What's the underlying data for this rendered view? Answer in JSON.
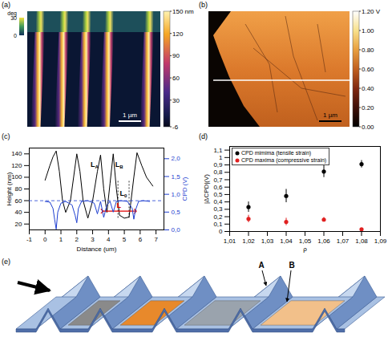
{
  "figure": {
    "a": {
      "label": "(a)",
      "colorbar": {
        "range": [
          -6,
          150
        ],
        "ticks": [
          {
            "value": 150,
            "label": "150 nm"
          },
          120,
          90,
          60,
          30,
          -6
        ]
      },
      "inset_colorbar": {
        "title": "deg",
        "range": [
          0,
          30
        ],
        "ticks": [
          30,
          0
        ]
      },
      "scale_bar": "1 µm"
    },
    "b": {
      "label": "(b)",
      "colorbar": {
        "range": [
          0,
          1.2
        ],
        "ticks": [
          {
            "value": 1.2,
            "label": "1.20 V"
          },
          {
            "value": 1,
            "label": "1.00"
          },
          {
            "value": 0.8,
            "label": "0.80"
          },
          {
            "value": 0.6,
            "label": "0.60"
          },
          {
            "value": 0.4,
            "label": "0.40"
          },
          {
            "value": 0.2,
            "label": "0.20"
          },
          {
            "value": 0,
            "label": "0.00"
          }
        ]
      },
      "scale_bar": "1 µm"
    },
    "e": {
      "label": "(e)",
      "labels": [
        "A",
        "B"
      ]
    }
  },
  "chart_data": [
    {
      "panel": "(c)",
      "type": "line",
      "xlabel": "Distance (um)",
      "ylabel": "Height (nm)",
      "y2label": "CPD (V)",
      "xlim": [
        -1,
        7.5
      ],
      "xticks": [
        -1,
        0,
        1,
        2,
        3,
        4,
        5,
        6,
        7
      ],
      "ylim": [
        10,
        150
      ],
      "yticks": [
        20,
        40,
        60,
        80,
        100,
        120,
        140
      ],
      "y2lim": [
        0,
        2.3
      ],
      "y2ticks": [
        {
          "value": 0,
          "label": "0,0"
        },
        {
          "value": 0.5,
          "label": "0,5"
        },
        {
          "value": 1,
          "label": "1,0"
        },
        {
          "value": 1.5,
          "label": "1,5"
        },
        {
          "value": 2,
          "label": "2,0"
        }
      ],
      "series": [
        {
          "color": "#000000",
          "x": [
            0,
            0.3,
            0.5,
            0.7,
            0.9,
            1.1,
            1.3,
            1.6,
            1.8,
            2.0,
            2.2,
            2.4,
            2.7,
            3.0,
            3.3,
            3.5,
            3.7,
            3.9,
            4.1,
            4.3,
            4.5,
            4.7,
            5.0,
            5.3,
            5.6,
            5.8,
            6.1,
            6.4,
            6.8
          ],
          "values": [
            95,
            120,
            135,
            145,
            110,
            60,
            40,
            60,
            100,
            140,
            110,
            60,
            30,
            60,
            110,
            138,
            80,
            40,
            90,
            140,
            80,
            35,
            30,
            32,
            100,
            142,
            120,
            100,
            85
          ]
        },
        {
          "color": "#1f3fd0",
          "axis": "y2",
          "x": [
            0,
            0.3,
            0.5,
            0.6,
            0.7,
            0.8,
            1.0,
            1.3,
            1.7,
            1.9,
            2.0,
            2.1,
            2.3,
            2.7,
            3.1,
            3.3,
            3.5,
            3.7,
            3.9,
            4.1,
            4.3,
            4.5,
            4.8,
            5.2,
            5.5,
            5.6,
            5.7,
            5.9,
            6.2,
            6.6
          ],
          "values": [
            0.8,
            0.78,
            0.6,
            0.3,
            0.02,
            0.5,
            0.75,
            0.8,
            0.7,
            0.4,
            0.2,
            0.6,
            0.8,
            0.82,
            0.75,
            0.45,
            0.8,
            0.35,
            0.7,
            0.8,
            0.5,
            0.8,
            0.82,
            0.8,
            0.6,
            0.3,
            0.55,
            0.8,
            0.82,
            0.8
          ]
        }
      ],
      "reference_line": {
        "axis": "y2",
        "value": 0.82,
        "line_style": "dashed",
        "color": "#1f3fd0"
      },
      "annotations": [
        {
          "text": "L",
          "sub": "A",
          "x": 3.1,
          "y": 122,
          "color": "#000000"
        },
        {
          "text": "L",
          "sub": "B",
          "x": 4.65,
          "y": 122,
          "color": "#000000"
        },
        {
          "text": "L",
          "sub": "0",
          "x": 4.95,
          "y": 72,
          "color": "#000000"
        },
        {
          "text": "L",
          "x": 4.65,
          "y": 52,
          "color": "#e00000"
        }
      ],
      "dotted_lines": {
        "x": [
          4.6,
          5.3
        ],
        "y": [
          30,
          95
        ]
      },
      "arrow": {
        "x": [
          3.6,
          5.7
        ],
        "y": 42,
        "color": "#e00000"
      }
    },
    {
      "panel": "(d)",
      "type": "scatter",
      "marker": "circle",
      "legend": "top-left",
      "xlabel": "ρ",
      "ylabel": "|ΔCPD|(V)",
      "xlim": [
        1.01,
        1.09
      ],
      "xticks": [
        {
          "value": 1.01,
          "label": "1,01"
        },
        {
          "value": 1.02,
          "label": "1,02"
        },
        {
          "value": 1.03,
          "label": "1,03"
        },
        {
          "value": 1.04,
          "label": "1,04"
        },
        {
          "value": 1.05,
          "label": "1,05"
        },
        {
          "value": 1.06,
          "label": "1,06"
        },
        {
          "value": 1.07,
          "label": "1,07"
        },
        {
          "value": 1.08,
          "label": "1,08"
        },
        {
          "value": 1.09,
          "label": "1,09"
        }
      ],
      "ylim": [
        0,
        1.15
      ],
      "yticks": [
        0,
        {
          "value": 0.1,
          "label": "0,1"
        },
        {
          "value": 0.2,
          "label": "0,2"
        },
        {
          "value": 0.3,
          "label": "0,3"
        },
        {
          "value": 0.4,
          "label": "0,4"
        },
        {
          "value": 0.5,
          "label": "0,5"
        },
        {
          "value": 0.6,
          "label": "0,6"
        },
        {
          "value": 0.7,
          "label": "0,7"
        },
        {
          "value": 0.8,
          "label": "0,8"
        },
        {
          "value": 0.9,
          "label": "0,9"
        },
        1,
        {
          "value": 1.1,
          "label": "1,1"
        }
      ],
      "series": [
        {
          "name": "CPD mimima (tensile strain)",
          "color": "#000000",
          "x": [
            1.02,
            1.04,
            1.06,
            1.08
          ],
          "values": [
            0.33,
            0.48,
            0.81,
            0.91
          ],
          "errors": [
            0.07,
            0.09,
            0.08,
            0.05
          ]
        },
        {
          "name": "CPD maxima (compressive strain)",
          "color": "#e02020",
          "x": [
            1.02,
            1.04,
            1.06,
            1.08
          ],
          "values": [
            0.17,
            0.13,
            0.16,
            0.03
          ],
          "errors": [
            0.05,
            0.05,
            0.03,
            0.01
          ]
        }
      ]
    }
  ]
}
